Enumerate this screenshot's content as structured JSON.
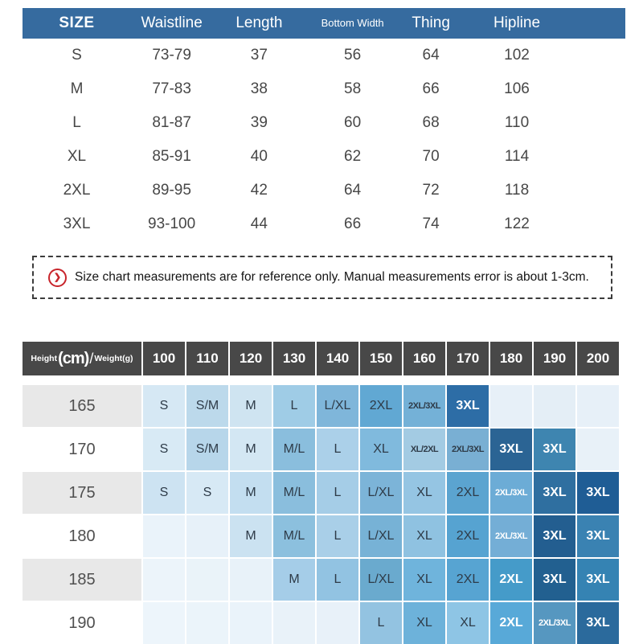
{
  "size_table": {
    "header_bg": "#366b9f",
    "columns": [
      "SIZE",
      "Waistline",
      "Length",
      "Bottom Width",
      "Thing",
      "Hipline"
    ],
    "rows": [
      [
        "S",
        "73-79",
        "37",
        "56",
        "64",
        "102"
      ],
      [
        "M",
        "77-83",
        "38",
        "58",
        "66",
        "106"
      ],
      [
        "L",
        "81-87",
        "39",
        "60",
        "68",
        "110"
      ],
      [
        "XL",
        "85-91",
        "40",
        "62",
        "70",
        "114"
      ],
      [
        "2XL",
        "89-95",
        "42",
        "64",
        "72",
        "118"
      ],
      [
        "3XL",
        "93-100",
        "44",
        "66",
        "74",
        "122"
      ]
    ]
  },
  "note": {
    "icon_glyph": "❯",
    "icon_color": "#c8242b",
    "text": "Size chart measurements are for reference only. Manual measurements error is about 1-3cm."
  },
  "fit_table": {
    "header_bg": "#484848",
    "corner": {
      "height_word": "Height",
      "height_unit": "(cm)",
      "separator": "/",
      "weight_label": "Weight(g)"
    },
    "weight_columns": [
      "100",
      "110",
      "120",
      "130",
      "140",
      "150",
      "160",
      "170",
      "180",
      "190",
      "200"
    ],
    "rows": [
      {
        "height": "165",
        "cells": [
          {
            "t": "S",
            "bg": "#d6e8f4"
          },
          {
            "t": "S/M",
            "bg": "#bcd9eb"
          },
          {
            "t": "M",
            "bg": "#cfe4f1"
          },
          {
            "t": "L",
            "bg": "#9fcce6"
          },
          {
            "t": "L/XL",
            "bg": "#7fb6da"
          },
          {
            "t": "2XL",
            "bg": "#61a8d3"
          },
          {
            "t": "2XL/3XL",
            "bg": "#74b1d7"
          },
          {
            "t": "3XL",
            "bg": "#2d6da6",
            "fg": "#ffffff"
          },
          {
            "t": "",
            "bg": "#e7f0f8"
          },
          {
            "t": "",
            "bg": "#e4eef6"
          },
          {
            "t": "",
            "bg": "#e7f0f8"
          }
        ]
      },
      {
        "height": "170",
        "cells": [
          {
            "t": "S",
            "bg": "#d8eaf5"
          },
          {
            "t": "S/M",
            "bg": "#b7d6ea"
          },
          {
            "t": "M",
            "bg": "#d3e7f3"
          },
          {
            "t": "M/L",
            "bg": "#8abedd"
          },
          {
            "t": "L",
            "bg": "#abd0e9"
          },
          {
            "t": "XL",
            "bg": "#80badd"
          },
          {
            "t": "XL/2XL",
            "bg": "#a3cbe3"
          },
          {
            "t": "2XL/3XL",
            "bg": "#79afd3"
          },
          {
            "t": "3XL",
            "bg": "#2b6494",
            "fg": "#ffffff"
          },
          {
            "t": "3XL",
            "bg": "#3e85b0",
            "fg": "#ffffff"
          },
          {
            "t": "",
            "bg": "#e8f1f8"
          }
        ]
      },
      {
        "height": "175",
        "cells": [
          {
            "t": "S",
            "bg": "#cde3f2"
          },
          {
            "t": "S",
            "bg": "#d7e9f5"
          },
          {
            "t": "M",
            "bg": "#c3def0"
          },
          {
            "t": "M/L",
            "bg": "#8abedd"
          },
          {
            "t": "L",
            "bg": "#a5cde7"
          },
          {
            "t": "L/XL",
            "bg": "#7cb4d8"
          },
          {
            "t": "XL",
            "bg": "#95c5e3"
          },
          {
            "t": "2XL",
            "bg": "#5ba4d0"
          },
          {
            "t": "2XL/3XL",
            "bg": "#6cacd6",
            "fg": "#ffffff"
          },
          {
            "t": "3XL",
            "bg": "#2f6fa0",
            "fg": "#ffffff"
          },
          {
            "t": "3XL",
            "bg": "#1f5d95",
            "fg": "#ffffff"
          }
        ]
      },
      {
        "height": "180",
        "cells": [
          {
            "t": "",
            "bg": "#eaf3fa"
          },
          {
            "t": "",
            "bg": "#e7f1f9"
          },
          {
            "t": "M",
            "bg": "#cbe2f1"
          },
          {
            "t": "M/L",
            "bg": "#8cc0de"
          },
          {
            "t": "L",
            "bg": "#a9cfe8"
          },
          {
            "t": "L/XL",
            "bg": "#77b2d6"
          },
          {
            "t": "XL",
            "bg": "#8fc2e1"
          },
          {
            "t": "2XL",
            "bg": "#56a3d1"
          },
          {
            "t": "2XL/3XL",
            "bg": "#74aed6",
            "fg": "#ffffff"
          },
          {
            "t": "3XL",
            "bg": "#235e90",
            "fg": "#ffffff"
          },
          {
            "t": "3XL",
            "bg": "#3a82b2",
            "fg": "#ffffff"
          }
        ]
      },
      {
        "height": "185",
        "cells": [
          {
            "t": "",
            "bg": "#ecf4fa"
          },
          {
            "t": "",
            "bg": "#eaf3f9"
          },
          {
            "t": "",
            "bg": "#e8f2f9"
          },
          {
            "t": "M",
            "bg": "#a5cde8"
          },
          {
            "t": "L",
            "bg": "#92c3e2"
          },
          {
            "t": "L/XL",
            "bg": "#6aaace"
          },
          {
            "t": "XL",
            "bg": "#6fb4dc"
          },
          {
            "t": "2XL",
            "bg": "#57a4d2"
          },
          {
            "t": "2XL",
            "bg": "#459bc9",
            "fg": "#ffffff"
          },
          {
            "t": "3XL",
            "bg": "#226090",
            "fg": "#ffffff"
          },
          {
            "t": "3XL",
            "bg": "#3583b3",
            "fg": "#ffffff"
          }
        ]
      },
      {
        "height": "190",
        "cells": [
          {
            "t": "",
            "bg": "#edf5fb"
          },
          {
            "t": "",
            "bg": "#ebf4fa"
          },
          {
            "t": "",
            "bg": "#eaf3fa"
          },
          {
            "t": "",
            "bg": "#e9f2f9"
          },
          {
            "t": "",
            "bg": "#e8f1f9"
          },
          {
            "t": "L",
            "bg": "#93c3e1"
          },
          {
            "t": "XL",
            "bg": "#6db2da"
          },
          {
            "t": "XL",
            "bg": "#8ec5e5"
          },
          {
            "t": "2XL",
            "bg": "#58a9d8",
            "fg": "#ffffff"
          },
          {
            "t": "2XL/3XL",
            "bg": "#5697c0",
            "fg": "#ffffff"
          },
          {
            "t": "3XL",
            "bg": "#2b6a9c",
            "fg": "#ffffff"
          }
        ]
      }
    ]
  }
}
